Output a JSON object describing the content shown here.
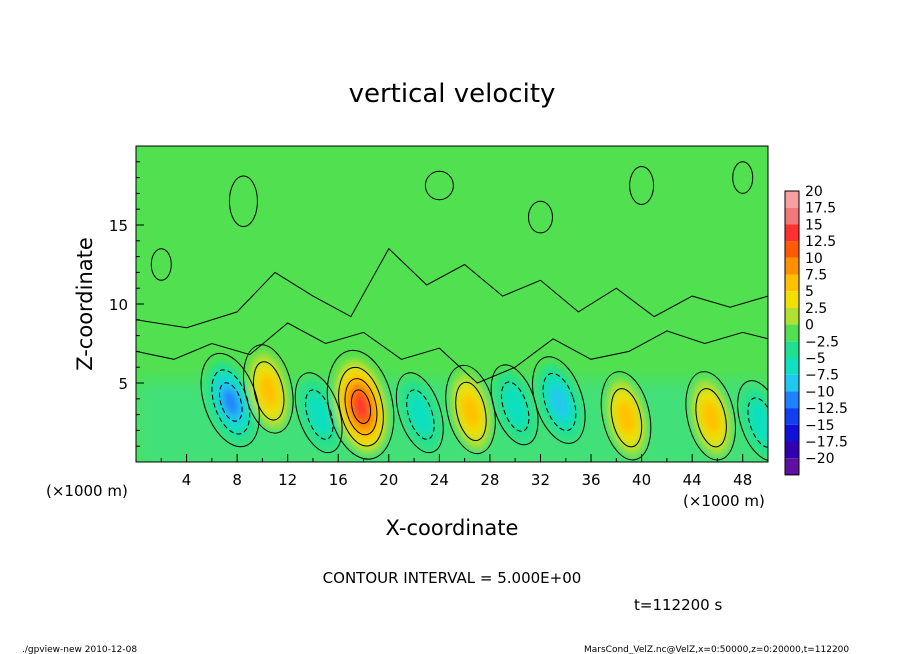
{
  "chart_data": {
    "type": "heatmap",
    "title": "vertical velocity",
    "xlabel": "X-coordinate",
    "ylabel": "Z-coordinate",
    "x_unit": "(×1000 m)",
    "y_unit": "(×1000 m)",
    "xlim": [
      0,
      50
    ],
    "ylim": [
      0,
      20
    ],
    "x_ticks": [
      "4",
      "8",
      "12",
      "16",
      "20",
      "24",
      "28",
      "32",
      "36",
      "40",
      "44",
      "48"
    ],
    "y_ticks": [
      "5",
      "10",
      "15"
    ],
    "colorbar": {
      "labels": [
        "20",
        "17.5",
        "15",
        "12.5",
        "10",
        "7.5",
        "5",
        "2.5",
        "0",
        "−2.5",
        "−5",
        "−7.5",
        "−10",
        "−12.5",
        "−15",
        "−17.5",
        "−20"
      ],
      "colors": [
        "#f8a0a0",
        "#f07878",
        "#ff3030",
        "#ff5a00",
        "#ff9000",
        "#ffc000",
        "#f0e000",
        "#b0e030",
        "#50e050",
        "#20e090",
        "#10e0c0",
        "#20c8f0",
        "#2080ff",
        "#1040f0",
        "#1010d8",
        "#3000b0",
        "#6010a0"
      ]
    },
    "contour_interval": "CONTOUR INTERVAL = 5.000E+00",
    "time_label": "t=112200 s",
    "features": [
      {
        "x": 7.5,
        "z": 3.8,
        "sign": "negative",
        "peak": -10
      },
      {
        "x": 10.5,
        "z": 4.5,
        "sign": "positive",
        "peak": 7.5
      },
      {
        "x": 14.5,
        "z": 3.0,
        "sign": "negative",
        "peak": -5
      },
      {
        "x": 17.8,
        "z": 3.5,
        "sign": "positive",
        "peak": 15
      },
      {
        "x": 22.5,
        "z": 3.0,
        "sign": "negative",
        "peak": -5
      },
      {
        "x": 26.5,
        "z": 3.2,
        "sign": "positive",
        "peak": 7.5
      },
      {
        "x": 30.0,
        "z": 3.5,
        "sign": "negative",
        "peak": -5
      },
      {
        "x": 33.5,
        "z": 3.8,
        "sign": "negative",
        "peak": -7.5
      },
      {
        "x": 38.8,
        "z": 2.8,
        "sign": "positive",
        "peak": 7.5
      },
      {
        "x": 45.5,
        "z": 2.8,
        "sign": "positive",
        "peak": 7.5
      },
      {
        "x": 49.5,
        "z": 2.5,
        "sign": "negative",
        "peak": -5
      }
    ]
  },
  "footer": {
    "program": "./gpview-new  2010-12-08",
    "source": "MarsCond_VelZ.nc@VelZ,x=0:50000,z=0:20000,t=112200"
  }
}
